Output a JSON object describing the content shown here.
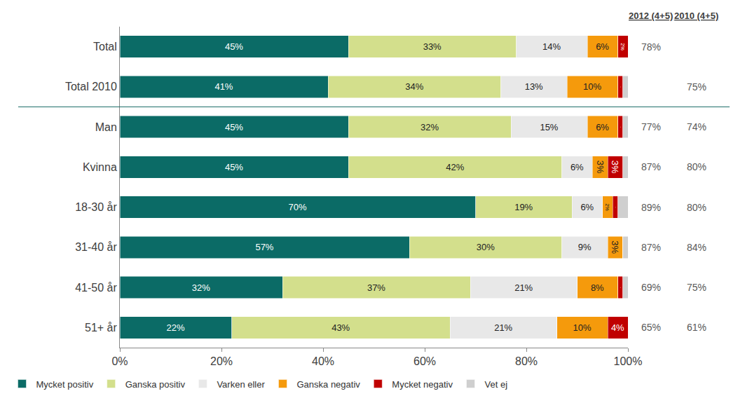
{
  "chart_data": {
    "type": "bar",
    "orientation": "horizontal",
    "stacked": true,
    "data_labels": true,
    "grid": false,
    "legend": "bottom",
    "categories": [
      "Total",
      "Total 2010",
      "Man",
      "Kvinna",
      "18-30 år",
      "31-40 år",
      "41-50 år",
      "51+ år"
    ],
    "series": [
      {
        "name": "Mycket positiv",
        "color": "#0b6b66",
        "values": [
          45,
          41,
          45,
          45,
          70,
          57,
          32,
          22
        ],
        "value_labels": [
          "45%",
          "41%",
          "45%",
          "45%",
          "70%",
          "57%",
          "32%",
          "22%"
        ]
      },
      {
        "name": "Ganska positiv",
        "color": "#d3df8c",
        "values": [
          33,
          34,
          32,
          42,
          19,
          30,
          37,
          43
        ],
        "value_labels": [
          "33%",
          "34%",
          "32%",
          "42%",
          "19%",
          "30%",
          "37%",
          "43%"
        ]
      },
      {
        "name": "Varken eller",
        "color": "#e8e8e8",
        "values": [
          14,
          13,
          15,
          6,
          6,
          9,
          21,
          21
        ],
        "value_labels": [
          "14%",
          "13%",
          "15%",
          "6%",
          "6%",
          "9%",
          "21%",
          "21%"
        ]
      },
      {
        "name": "Ganska negativ",
        "color": "#f59a0c",
        "values": [
          6,
          10,
          6,
          3,
          2,
          3,
          8,
          10
        ],
        "value_labels": [
          "6%",
          "10%",
          "6%",
          "3%",
          "2%",
          "3%",
          "8%",
          "10%"
        ]
      },
      {
        "name": "Mycket negativ",
        "color": "#c00000",
        "values": [
          2,
          1,
          1,
          3,
          1,
          0,
          1,
          4
        ],
        "value_labels": [
          "2%",
          "1%",
          "1%",
          "3%",
          "1%",
          null,
          "1%",
          "4%"
        ]
      },
      {
        "name": "Vet ej",
        "color": "#cfcfcf",
        "values": [
          0,
          1,
          1,
          1,
          2,
          1,
          1,
          0
        ],
        "value_labels": [
          null,
          null,
          null,
          null,
          null,
          null,
          null,
          null
        ]
      }
    ],
    "xlim": [
      0,
      100
    ],
    "xticks": [
      {
        "value": 0,
        "label": "0%"
      },
      {
        "value": 20,
        "label": "20%"
      },
      {
        "value": 40,
        "label": "40%"
      },
      {
        "value": 60,
        "label": "60%"
      },
      {
        "value": 80,
        "label": "80%"
      },
      {
        "value": 100,
        "label": "100%"
      }
    ],
    "columns": [
      {
        "title": "2012 (4+5)",
        "values": [
          78,
          null,
          77,
          87,
          89,
          87,
          69,
          65
        ],
        "value_labels": [
          "78%",
          null,
          "77%",
          "87%",
          "89%",
          "87%",
          "69%",
          "65%"
        ]
      },
      {
        "title": "2010 (4+5)",
        "values": [
          null,
          75,
          74,
          80,
          80,
          84,
          75,
          61
        ],
        "value_labels": [
          null,
          "75%",
          "74%",
          "80%",
          "80%",
          "84%",
          "75%",
          "61%"
        ]
      }
    ]
  }
}
